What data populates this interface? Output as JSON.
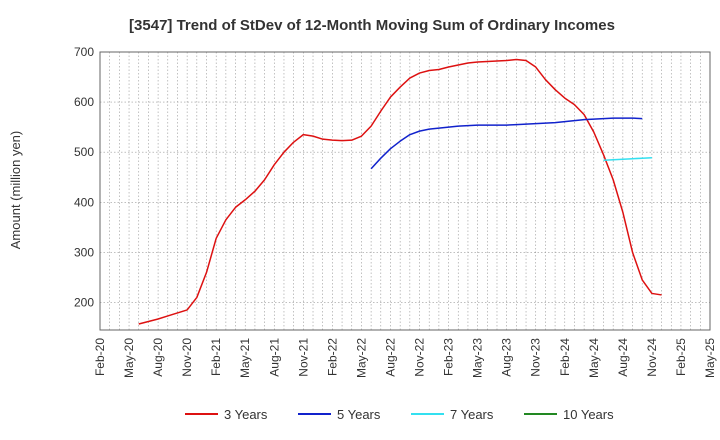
{
  "chart_data": {
    "type": "line",
    "title": "[3547]  Trend of StDev of 12-Month Moving Sum of Ordinary Incomes",
    "ylabel": "Amount (million yen)",
    "xlabel": "",
    "ylim": [
      145,
      700
    ],
    "yticks": [
      200,
      300,
      400,
      500,
      600,
      700
    ],
    "x_ticks": [
      "Feb-20",
      "May-20",
      "Aug-20",
      "Nov-20",
      "Feb-21",
      "May-21",
      "Aug-21",
      "Nov-21",
      "Feb-22",
      "May-22",
      "Aug-22",
      "Nov-22",
      "Feb-23",
      "May-23",
      "Aug-23",
      "Nov-23",
      "Feb-24",
      "May-24",
      "Aug-24",
      "Nov-24",
      "Feb-25",
      "May-25"
    ],
    "grid": true,
    "legend_position": "bottom",
    "series": [
      {
        "name": "3 Years",
        "color": "#dd1111",
        "start_index": 4,
        "values": [
          157,
          162,
          167,
          173,
          179,
          185,
          210,
          260,
          328,
          365,
          390,
          405,
          422,
          445,
          475,
          500,
          520,
          535,
          532,
          526,
          524,
          523,
          524,
          532,
          552,
          582,
          610,
          630,
          648,
          658,
          663,
          665,
          670,
          674,
          678,
          680,
          681,
          682,
          683,
          685,
          683,
          670,
          645,
          625,
          608,
          595,
          575,
          540,
          495,
          445,
          380,
          300,
          245,
          218,
          215
        ]
      },
      {
        "name": "5 Years",
        "color": "#1122cc",
        "start_index": 28,
        "values": [
          467,
          488,
          507,
          522,
          535,
          542,
          546,
          548,
          550,
          552,
          553,
          554,
          554,
          554,
          554,
          555,
          556,
          557,
          558,
          559,
          561,
          563,
          565,
          566,
          567,
          568,
          568,
          568,
          567
        ]
      },
      {
        "name": "7 Years",
        "color": "#33e0f0",
        "start_index": 52,
        "values": [
          484,
          485,
          486,
          487,
          488,
          489
        ]
      },
      {
        "name": "10 Years",
        "color": "#228822",
        "start_index": 0,
        "values": []
      }
    ]
  }
}
